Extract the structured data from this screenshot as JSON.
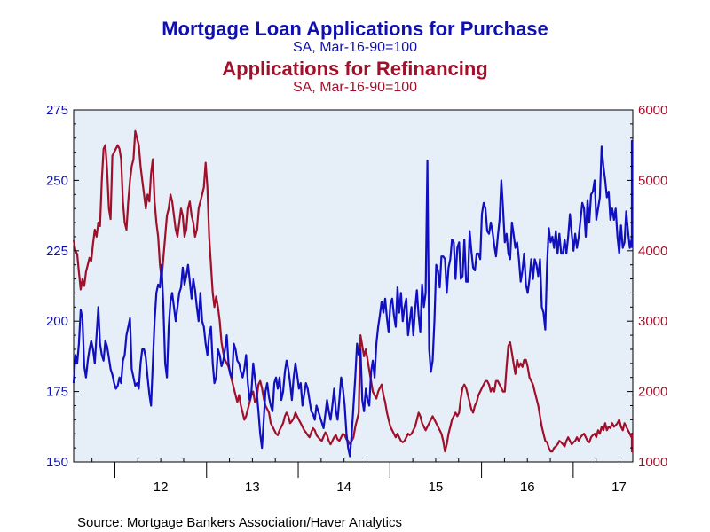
{
  "chart_data": {
    "type": "line",
    "titles": [
      {
        "text": "Mortgage Loan Applications for Purchase",
        "color": "#1010b0"
      },
      {
        "text": "SA, Mar-16-90=100",
        "color": "#1010b0"
      },
      {
        "text": "Applications for Refinancing",
        "color": "#a0102a"
      },
      {
        "text": "SA, Mar-16-90=100",
        "color": "#a0102a"
      }
    ],
    "source": "Source:  Mortgage Bankers Association/Haver Analytics",
    "xlim": [
      2011.55,
      2017.65
    ],
    "x_ticks": [
      "12",
      "13",
      "14",
      "15",
      "16",
      "17"
    ],
    "y_left": {
      "ylim": [
        150,
        275
      ],
      "ticks": [
        "150",
        "175",
        "200",
        "225",
        "250",
        "275"
      ],
      "color": "#1010b0"
    },
    "y_right": {
      "ylim": [
        1000,
        6000
      ],
      "ticks": [
        "1000",
        "2000",
        "3000",
        "4000",
        "5000",
        "6000"
      ],
      "color": "#a0102a"
    },
    "grid": false,
    "plot_background": "#e6eef8",
    "series": [
      {
        "axis": "left",
        "color": "#1010c0",
        "x_start": 2011.55,
        "x_step": 0.0192,
        "values": [
          178,
          188,
          185,
          192,
          204,
          201,
          184,
          180,
          186,
          190,
          193,
          190,
          185,
          195,
          205,
          192,
          188,
          186,
          193,
          191,
          187,
          183,
          181,
          178,
          176,
          177,
          180,
          178,
          186,
          188,
          195,
          198,
          201,
          183,
          180,
          177,
          178,
          176,
          185,
          190,
          190,
          187,
          180,
          174,
          170,
          185,
          200,
          210,
          213,
          212,
          220,
          205,
          185,
          180,
          198,
          207,
          210,
          205,
          200,
          205,
          210,
          212,
          219,
          213,
          216,
          220,
          214,
          208,
          215,
          211,
          205,
          200,
          210,
          200,
          198,
          192,
          188,
          195,
          198,
          185,
          178,
          180,
          190,
          188,
          184,
          186,
          190,
          195,
          185,
          181,
          180,
          192,
          190,
          186,
          185,
          182,
          180,
          183,
          188,
          178,
          172,
          175,
          185,
          180,
          175,
          168,
          160,
          155,
          165,
          175,
          178,
          173,
          170,
          168,
          178,
          180,
          176,
          180,
          172,
          175,
          182,
          186,
          183,
          178,
          172,
          180,
          185,
          181,
          176,
          178,
          170,
          174,
          178,
          176,
          172,
          168,
          167,
          165,
          170,
          168,
          166,
          164,
          162,
          167,
          172,
          168,
          165,
          170,
          176,
          168,
          165,
          172,
          180,
          176,
          170,
          160,
          155,
          152,
          160,
          170,
          180,
          192,
          188,
          190,
          172,
          168,
          176,
          172,
          170,
          182,
          186,
          180,
          192,
          198,
          202,
          207,
          203,
          208,
          201,
          196,
          206,
          208,
          202,
          198,
          212,
          203,
          210,
          200,
          205,
          208,
          195,
          200,
          205,
          195,
          204,
          211,
          202,
          196,
          213,
          205,
          210,
          257,
          190,
          182,
          186,
          200,
          220,
          218,
          212,
          223,
          223,
          222,
          210,
          219,
          222,
          229,
          228,
          215,
          226,
          228,
          215,
          216,
          229,
          214,
          214,
          232,
          225,
          219,
          218,
          224,
          224,
          222,
          238,
          242,
          240,
          232,
          231,
          235,
          232,
          227,
          223,
          230,
          236,
          250,
          240,
          228,
          231,
          224,
          222,
          235,
          231,
          226,
          228,
          222,
          214,
          218,
          224,
          213,
          210,
          215,
          222,
          215,
          222,
          220,
          216,
          222,
          205,
          203,
          197,
          220,
          233,
          228,
          230,
          226,
          232,
          224,
          231,
          224,
          224,
          229,
          224,
          230,
          238,
          231,
          225,
          231,
          226,
          230,
          236,
          242,
          240,
          230,
          243,
          235,
          245,
          246,
          250,
          236,
          240,
          244,
          262,
          255,
          250,
          244,
          246,
          236,
          240,
          236,
          240,
          230,
          224,
          234,
          226,
          228,
          239,
          232,
          226,
          229,
          230,
          242,
          235,
          233,
          250,
          247,
          237,
          228,
          227,
          232,
          240,
          264,
          257,
          247,
          226
        ]
      },
      {
        "axis": "right",
        "color": "#a0102a",
        "x_start": 2011.55,
        "x_step": 0.0192,
        "values": [
          4150,
          4000,
          3950,
          3700,
          3450,
          3600,
          3500,
          3700,
          3800,
          3900,
          3850,
          4100,
          4300,
          4200,
          4400,
          4350,
          5000,
          5450,
          5500,
          5150,
          4600,
          4450,
          5350,
          5400,
          5450,
          5500,
          5450,
          5300,
          4700,
          4400,
          4300,
          4700,
          5000,
          5200,
          5300,
          5700,
          5600,
          5500,
          5200,
          5000,
          4800,
          4600,
          4800,
          4700,
          5100,
          5300,
          4700,
          4400,
          4200,
          3800,
          3600,
          3900,
          4200,
          4500,
          4600,
          4800,
          4700,
          4500,
          4300,
          4200,
          4400,
          4600,
          4500,
          4200,
          4300,
          4600,
          4700,
          4500,
          4400,
          4200,
          4300,
          4600,
          4700,
          4800,
          4900,
          5250,
          4900,
          4200,
          3800,
          3400,
          3200,
          3350,
          3200,
          3000,
          2700,
          2550,
          2450,
          2400,
          2350,
          2250,
          2150,
          2050,
          1950,
          1850,
          1950,
          1800,
          1700,
          1600,
          1650,
          1750,
          1850,
          1950,
          2000,
          1850,
          1900,
          2100,
          2150,
          2050,
          1900,
          1800,
          1750,
          1700,
          1550,
          1500,
          1450,
          1400,
          1380,
          1450,
          1500,
          1550,
          1650,
          1700,
          1650,
          1550,
          1580,
          1620,
          1700,
          1650,
          1600,
          1550,
          1500,
          1450,
          1420,
          1380,
          1350,
          1420,
          1480,
          1450,
          1380,
          1350,
          1320,
          1300,
          1360,
          1420,
          1380,
          1300,
          1250,
          1300,
          1350,
          1380,
          1320,
          1300,
          1350,
          1400,
          1380,
          1320,
          1300,
          1250,
          1300,
          1350,
          1500,
          1600,
          1700,
          2800,
          2650,
          2500,
          2600,
          2450,
          2300,
          2150,
          2000,
          1950,
          1900,
          2000,
          2050,
          2100,
          1950,
          1850,
          1700,
          1600,
          1500,
          1450,
          1400,
          1350,
          1400,
          1350,
          1300,
          1280,
          1300,
          1350,
          1400,
          1380,
          1400,
          1450,
          1500,
          1600,
          1700,
          1650,
          1550,
          1500,
          1450,
          1500,
          1550,
          1600,
          1650,
          1600,
          1550,
          1500,
          1450,
          1400,
          1300,
          1150,
          1250,
          1400,
          1500,
          1600,
          1650,
          1700,
          1650,
          1700,
          1900,
          2050,
          2100,
          2050,
          1950,
          1850,
          1750,
          1700,
          1800,
          1850,
          1950,
          2000,
          2050,
          2100,
          2150,
          2150,
          2100,
          2000,
          2050,
          2000,
          2150,
          2150,
          2100,
          2050,
          2000,
          2000,
          2350,
          2650,
          2700,
          2550,
          2400,
          2250,
          2450,
          2350,
          2400,
          2350,
          2450,
          2450,
          2350,
          2200,
          2150,
          2100,
          2000,
          1900,
          1800,
          1650,
          1500,
          1400,
          1300,
          1280,
          1200,
          1150,
          1150,
          1200,
          1220,
          1250,
          1300,
          1280,
          1250,
          1220,
          1300,
          1350,
          1300,
          1250,
          1280,
          1300,
          1350,
          1300,
          1350,
          1380,
          1400,
          1350,
          1300,
          1280,
          1350,
          1380,
          1400,
          1350,
          1450,
          1400,
          1500,
          1450,
          1550,
          1450,
          1500,
          1480,
          1550,
          1500,
          1520,
          1550,
          1600,
          1500,
          1450,
          1550,
          1500,
          1450,
          1400,
          1350,
          1380,
          1400,
          1350,
          1300,
          1250,
          1300,
          1350,
          1300,
          1280,
          1250,
          1150,
          1200,
          1280,
          1300,
          1350,
          1320,
          1280,
          1300,
          1250,
          1200,
          1150
        ]
      }
    ]
  }
}
